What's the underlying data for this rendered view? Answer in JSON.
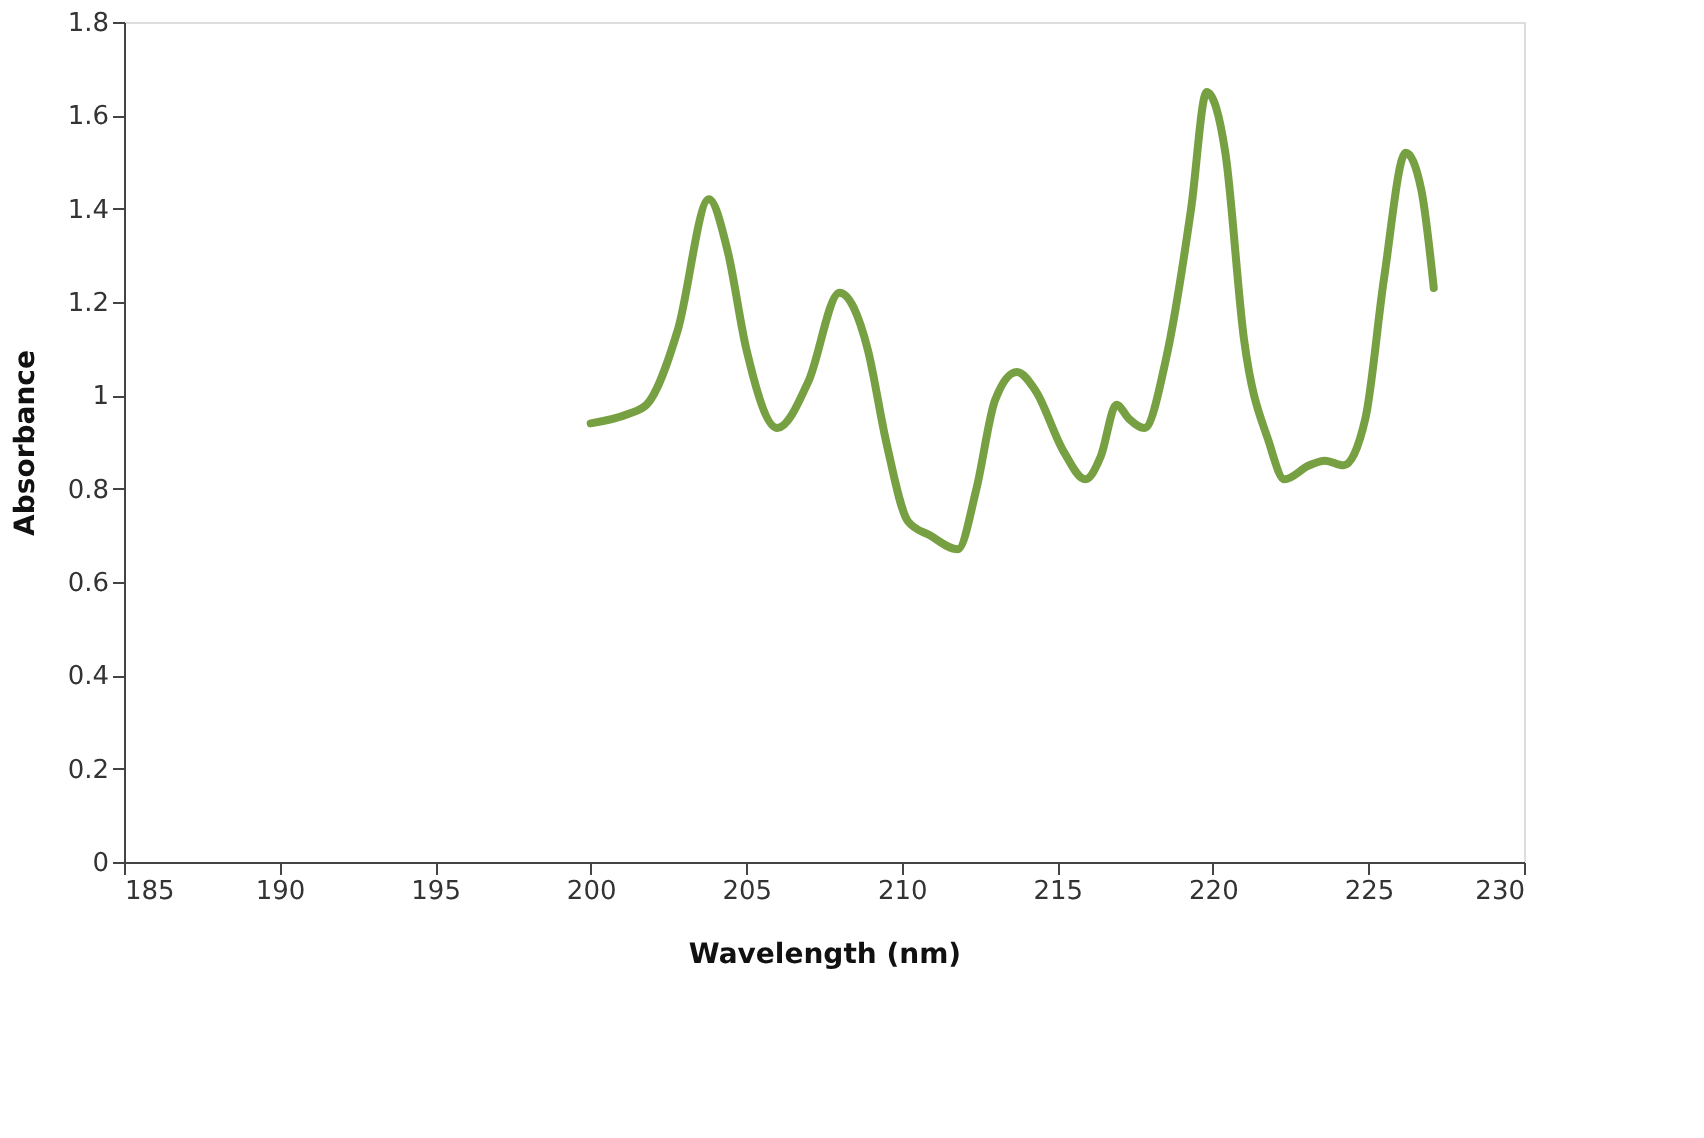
{
  "chart_data": {
    "type": "line",
    "xlabel": "Wavelength (nm)",
    "ylabel": "Absorbance",
    "xlim": [
      185,
      230
    ],
    "xticks": [
      185,
      190,
      195,
      200,
      205,
      210,
      215,
      220,
      225,
      230
    ],
    "ylim": [
      0,
      1.8
    ],
    "yticks": [
      0,
      {
        "value": 0.2,
        "label": "0.2"
      },
      {
        "value": 0.4,
        "label": "0.4"
      },
      {
        "value": 0.6,
        "label": "0.6"
      },
      {
        "value": 0.8,
        "label": "0.8"
      },
      1,
      {
        "value": 1.2,
        "label": "1.2"
      },
      {
        "value": 1.4,
        "label": "1.4"
      },
      {
        "value": 1.6,
        "label": "1.6"
      },
      {
        "value": 1.8,
        "label": "1.8"
      }
    ],
    "grid": false,
    "marker": "none",
    "line_style": "solid",
    "series": [
      {
        "color": "#77a043",
        "x": [
          200,
          201.2,
          201.8,
          202.8,
          203.8,
          204.4,
          205.0,
          206.0,
          207.0,
          208.0,
          208.9,
          209.5,
          210.2,
          210.9,
          211.8,
          212.4,
          213.0,
          213.7,
          214.3,
          215.2,
          215.9,
          216.4,
          216.9,
          217.3,
          217.8,
          218.5,
          219.3,
          219.8,
          220.4,
          221.0,
          221.8,
          222.3,
          223.1,
          223.6,
          224.2,
          224.9,
          225.5,
          226.2,
          226.7,
          227.1
        ],
        "values": [
          0.94,
          0.96,
          0.98,
          1.14,
          1.42,
          1.31,
          1.1,
          0.93,
          1.03,
          1.22,
          1.1,
          0.9,
          0.73,
          0.7,
          0.67,
          0.8,
          0.99,
          1.05,
          1.01,
          0.88,
          0.82,
          0.87,
          0.98,
          0.95,
          0.93,
          1.08,
          1.4,
          1.65,
          1.52,
          1.12,
          0.9,
          0.82,
          0.85,
          0.86,
          0.85,
          0.95,
          1.25,
          1.52,
          1.44,
          1.23
        ]
      }
    ]
  }
}
